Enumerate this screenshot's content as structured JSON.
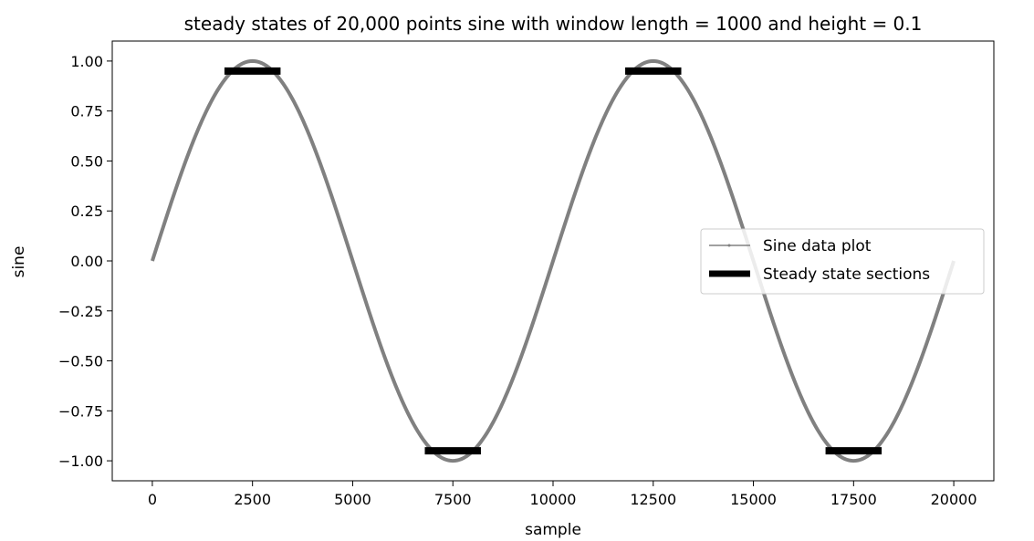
{
  "chart_data": {
    "type": "line",
    "title": "steady states of 20,000 points sine with window length = 1000 and height = 0.1",
    "xlabel": "sample",
    "ylabel": "sine",
    "xlim": [
      -1000,
      21000
    ],
    "ylim": [
      -1.1,
      1.1
    ],
    "xticks": [
      0,
      2500,
      5000,
      7500,
      10000,
      12500,
      15000,
      17500,
      20000
    ],
    "xtick_labels": [
      "0",
      "2500",
      "5000",
      "7500",
      "10000",
      "12500",
      "15000",
      "17500",
      "20000"
    ],
    "yticks": [
      1.0,
      0.75,
      0.5,
      0.25,
      0.0,
      -0.25,
      -0.5,
      -0.75,
      -1.0
    ],
    "ytick_labels": [
      "1.00",
      "0.75",
      "0.50",
      "0.25",
      "0.00",
      "−0.25",
      "−0.50",
      "−0.75",
      "−1.00"
    ],
    "grid": false,
    "legend_position": "center-right",
    "series": [
      {
        "name": "Sine data plot",
        "kind": "line",
        "color": "#808080",
        "function": "sin(2*pi*x/10000)",
        "x_range": [
          0,
          20000
        ]
      },
      {
        "name": "Steady state sections",
        "kind": "segments",
        "color": "#000000",
        "segments": [
          {
            "x_start": 1800,
            "x_end": 3200,
            "y": 0.95
          },
          {
            "x_start": 6800,
            "x_end": 8200,
            "y": -0.95
          },
          {
            "x_start": 11800,
            "x_end": 13200,
            "y": 0.95
          },
          {
            "x_start": 16800,
            "x_end": 18200,
            "y": -0.95
          }
        ]
      }
    ]
  }
}
